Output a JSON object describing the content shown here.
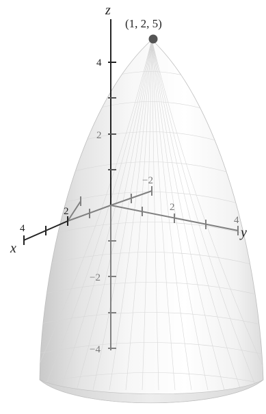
{
  "axes": {
    "x_label": "x",
    "y_label": "y",
    "z_label": "z"
  },
  "x_ticks": [
    "4",
    "2"
  ],
  "y_ticks": [
    "−2",
    "2",
    "4"
  ],
  "z_ticks": [
    "4",
    "2",
    "−2",
    "−4"
  ],
  "vertex": {
    "label": "(1, 2, 5)",
    "color": "#555555"
  },
  "colors": {
    "axis_dark": "#222222",
    "axis_gray": "#808080",
    "surface_light": "#ffffff",
    "surface_shadow": "#c8c8c8"
  }
}
